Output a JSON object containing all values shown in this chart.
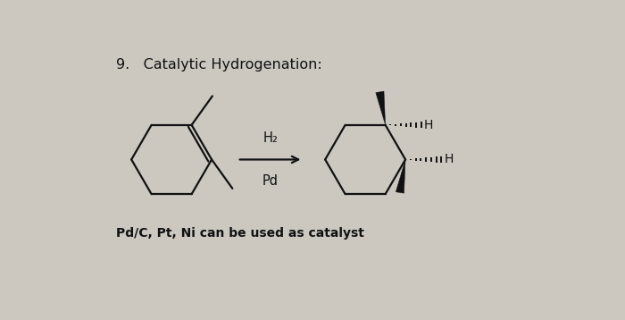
{
  "title": "9.   Catalytic Hydrogenation:",
  "reagent_top": "H₂",
  "reagent_bottom": "Pd",
  "note": "Pd/C, Pt, Ni can be used as catalyst",
  "bg_color": "#ccc8c0",
  "text_color": "#111111",
  "title_fontsize": 11.5,
  "reagent_fontsize": 10.5,
  "note_fontsize": 10
}
